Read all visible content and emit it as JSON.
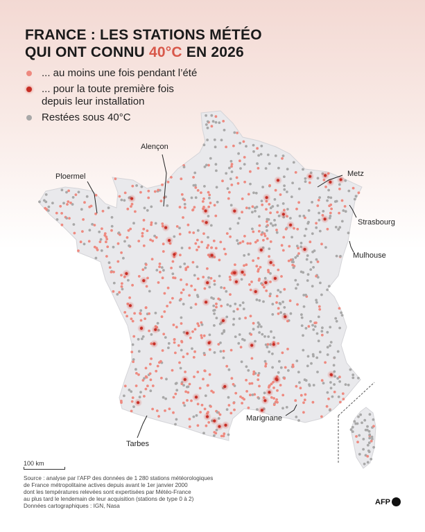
{
  "title": {
    "line1": "FRANCE : LES STATIONS MÉTÉO",
    "line2_before": "QUI ONT CONNU ",
    "line2_accent": "40°C",
    "line2_after": " EN 2026"
  },
  "legend": [
    {
      "label": "... au moins une fois pendant l’été",
      "color": "#ee8a80",
      "icon": "light-red-dot"
    },
    {
      "label": "... pour la toute première fois",
      "label2": "depuis leur installation",
      "color": "#c62e25",
      "icon": "dark-red-glow-dot"
    },
    {
      "label": "Restées sous 40°C",
      "color": "#a8a8a8",
      "icon": "grey-dot"
    }
  ],
  "cities": [
    {
      "name": "Alençon"
    },
    {
      "name": "Ploermel"
    },
    {
      "name": "Metz"
    },
    {
      "name": "Strasbourg"
    },
    {
      "name": "Mulhouse"
    },
    {
      "name": "Marignane"
    },
    {
      "name": "Tarbes"
    }
  ],
  "scale": "100 km",
  "source": [
    "Source : analyse par l’AFP des données de 1 280 stations météorologiques",
    "de France métropolitaine actives depuis avant le 1er janvier 2000",
    "dont les températures relevées sont expertisées par Météo-France",
    "au plus tard le lendemain de leur acquisition (stations de type 0 à 2)",
    "Données cartographiques : IGN, Nasa"
  ],
  "logo": "AFP",
  "colors": {
    "accent": "#d8584a",
    "hot": "#ee8a80",
    "first_time": "#c62e25",
    "cool": "#a8a8a8",
    "land": "#e9e9ec"
  }
}
